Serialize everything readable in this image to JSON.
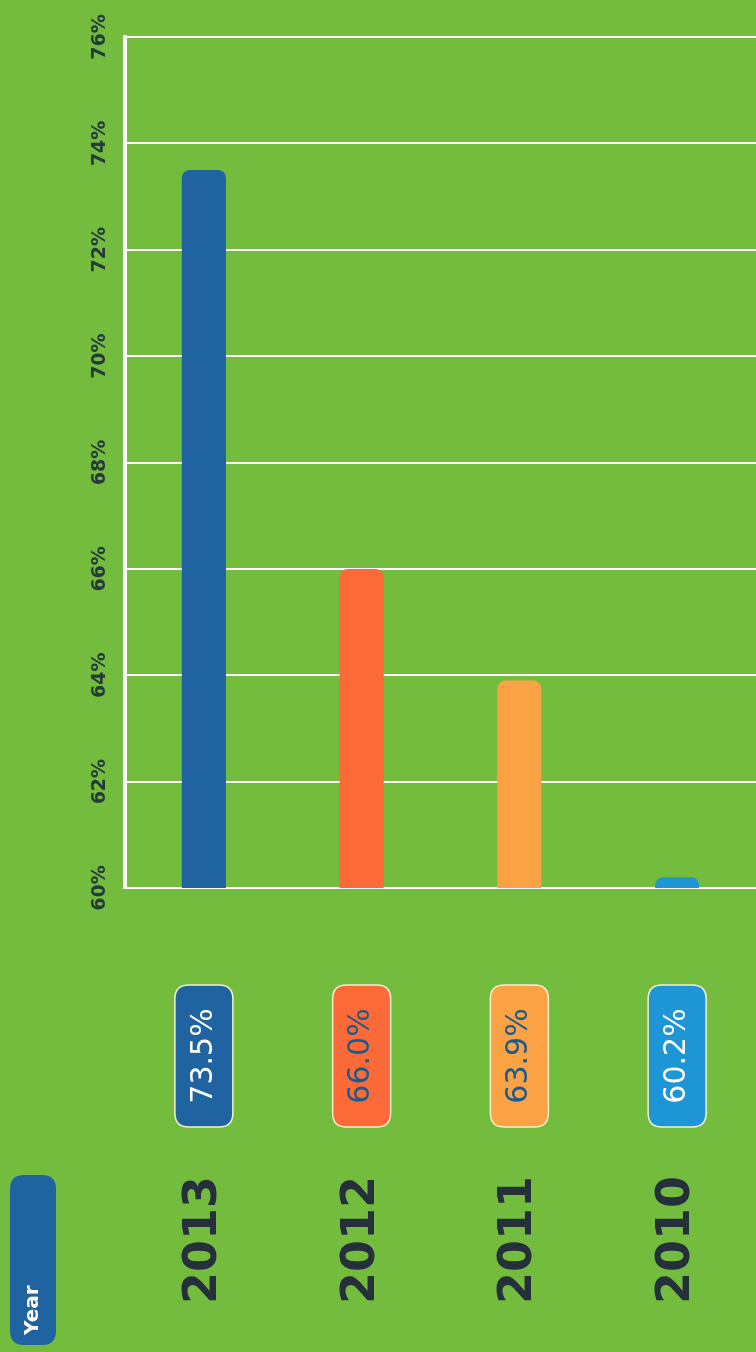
{
  "chart_data": {
    "type": "bar",
    "annotations": [
      "Year"
    ],
    "categories": [
      "2013",
      "2012",
      "2011",
      "2010"
    ],
    "values": [
      73.5,
      66.0,
      63.9,
      60.2
    ],
    "colors": [
      "#1f64a0",
      "#fb6a37",
      "#fba245",
      "#1e96d6"
    ],
    "value_labels": [
      "73.5%",
      "66.0%",
      "63.9%",
      "60.2%"
    ],
    "ylim": [
      60,
      76
    ],
    "yticks": [
      {
        "value": 60,
        "label": "60%"
      },
      {
        "value": 62,
        "label": "62%"
      },
      {
        "value": 64,
        "label": "64%"
      },
      {
        "value": 66,
        "label": "66%"
      },
      {
        "value": 68,
        "label": "68%"
      },
      {
        "value": 70,
        "label": "70%"
      },
      {
        "value": 72,
        "label": "72%"
      },
      {
        "value": 74,
        "label": "74%"
      },
      {
        "value": 76,
        "label": "76%"
      }
    ],
    "grid": "y",
    "legend": false
  }
}
